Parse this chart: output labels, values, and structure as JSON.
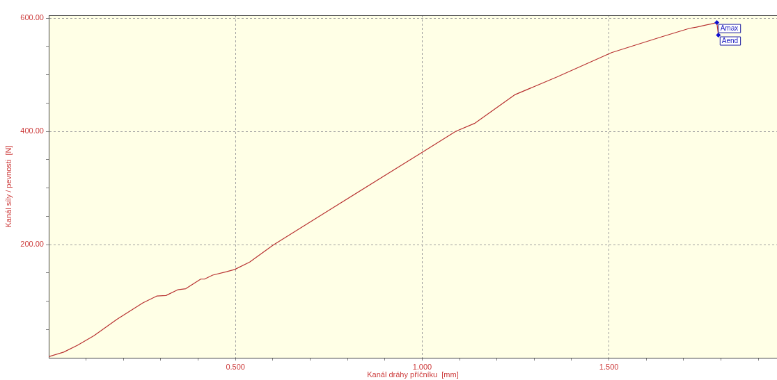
{
  "chart_data": {
    "type": "line",
    "xlabel": "Kanál dráhy příčníku  [mm]",
    "ylabel": "Kanál síly / pevnosti  [N]",
    "xlim": [
      0,
      1.95
    ],
    "ylim": [
      0,
      605
    ],
    "xticks": [
      {
        "value": 0.1,
        "label": null
      },
      {
        "value": 0.2,
        "label": null
      },
      {
        "value": 0.3,
        "label": null
      },
      {
        "value": 0.4,
        "label": null
      },
      {
        "value": 0.5,
        "label": "0.500"
      },
      {
        "value": 0.6,
        "label": null
      },
      {
        "value": 0.7,
        "label": null
      },
      {
        "value": 0.8,
        "label": null
      },
      {
        "value": 0.9,
        "label": null
      },
      {
        "value": 1.0,
        "label": "1.000"
      },
      {
        "value": 1.1,
        "label": null
      },
      {
        "value": 1.2,
        "label": null
      },
      {
        "value": 1.3,
        "label": null
      },
      {
        "value": 1.4,
        "label": null
      },
      {
        "value": 1.5,
        "label": "1.500"
      },
      {
        "value": 1.6,
        "label": null
      },
      {
        "value": 1.7,
        "label": null
      },
      {
        "value": 1.8,
        "label": null
      },
      {
        "value": 1.9,
        "label": null
      }
    ],
    "yticks": [
      {
        "value": 50,
        "label": null
      },
      {
        "value": 100,
        "label": null
      },
      {
        "value": 150,
        "label": null
      },
      {
        "value": 200,
        "label": "200.00"
      },
      {
        "value": 250,
        "label": null
      },
      {
        "value": 300,
        "label": null
      },
      {
        "value": 350,
        "label": null
      },
      {
        "value": 400,
        "label": "400.00"
      },
      {
        "value": 450,
        "label": null
      },
      {
        "value": 500,
        "label": null
      },
      {
        "value": 550,
        "label": null
      },
      {
        "value": 600,
        "label": "600.00"
      }
    ],
    "grid": true,
    "legend": false,
    "marker": "none",
    "line_style": "solid",
    "series": [
      {
        "color": "#b83232",
        "x": [
          0,
          0.04,
          0.077,
          0.121,
          0.183,
          0.252,
          0.289,
          0.314,
          0.345,
          0.367,
          0.407,
          0.417,
          0.439,
          0.476,
          0.498,
          0.538,
          0.601,
          0.756,
          1.0,
          1.09,
          1.14,
          1.249,
          1.361,
          1.507,
          1.641,
          1.716,
          1.734,
          1.789,
          1.793
        ],
        "values": [
          2,
          10,
          22,
          39,
          68,
          97,
          109,
          110,
          120,
          122,
          139,
          139,
          146,
          152,
          156,
          169,
          199,
          263,
          363,
          400,
          414,
          465,
          496,
          539,
          567,
          582,
          584,
          592,
          570
        ]
      }
    ],
    "annotations": [
      {
        "text": "Amax",
        "x": 1.789,
        "y": 592
      },
      {
        "text": "Aend",
        "x": 1.793,
        "y": 570
      }
    ]
  }
}
